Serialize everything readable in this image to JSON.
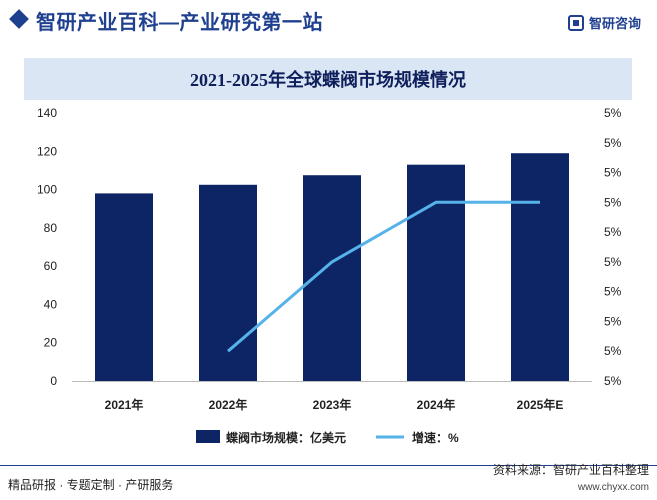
{
  "header": {
    "title": "智研产业百科—产业研究第一站",
    "logo_text": "智研咨询",
    "logo_icon": "zhiyan-logo-icon"
  },
  "footer": {
    "left_text": "精品研报 · 专题定制 · 产研服务",
    "source": "资料来源：智研产业百科整理",
    "url": "www.chyxx.com"
  },
  "colors": {
    "bar": "#0e2565",
    "line": "#55b3ea",
    "title_bg": "#dbe6f5",
    "brand": "#1f3f8f"
  },
  "chart_data": {
    "type": "bar",
    "title": "2021-2025年全球蝶阀市场规模情况",
    "categories": [
      "2021年",
      "2022年",
      "2023年",
      "2024年",
      "2025年E"
    ],
    "series": [
      {
        "name": "蝶阀市场规模：亿美元",
        "type": "bar",
        "axis": "left",
        "values": [
          98,
          102.5,
          107.5,
          113,
          119
        ]
      },
      {
        "name": "增速：%",
        "type": "line",
        "axis": "right",
        "values": [
          null,
          4.6,
          4.9,
          5.1,
          5.1
        ]
      }
    ],
    "y_left": {
      "min": 0,
      "max": 140,
      "ticks": [
        0,
        20,
        40,
        60,
        80,
        100,
        120,
        140
      ]
    },
    "y_right": {
      "min": 4.5,
      "max": 5.4,
      "tick_count": 10,
      "tick_label": "5%"
    },
    "legend_position": "bottom",
    "grid": false
  }
}
